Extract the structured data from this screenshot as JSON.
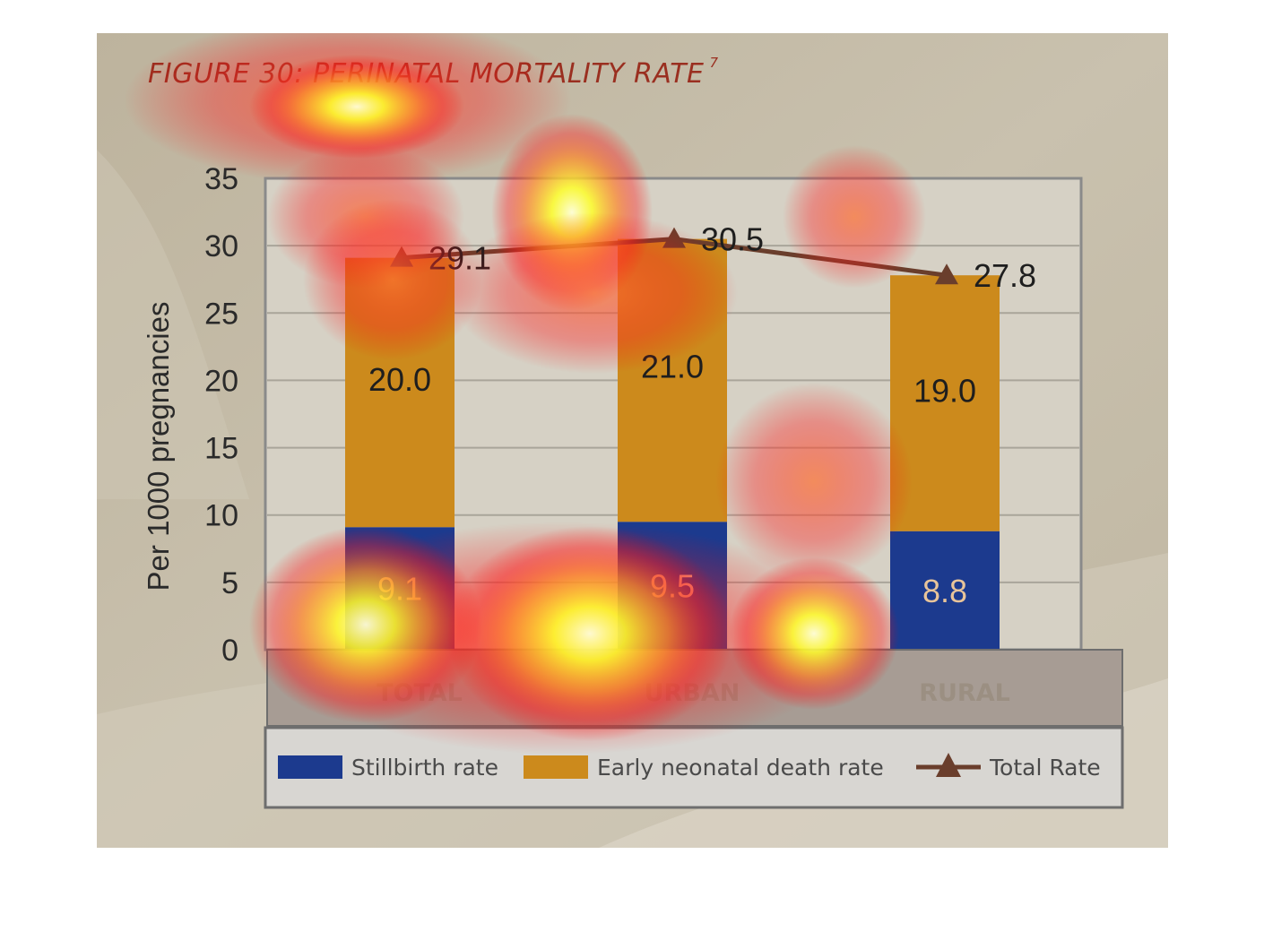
{
  "figure": {
    "title": "FIGURE 30: PERINATAL MORTALITY RATE",
    "title_superscript": "7"
  },
  "chart_data": {
    "type": "bar",
    "stacked": true,
    "categories": [
      "TOTAL",
      "URBAN",
      "RURAL"
    ],
    "series": [
      {
        "name": "Stillbirth rate",
        "type": "bar",
        "values": [
          9.1,
          9.5,
          8.8
        ],
        "color": "#1c3a8e"
      },
      {
        "name": "Early neonatal death rate",
        "type": "bar",
        "values": [
          20.0,
          21.0,
          19.0
        ],
        "color": "#cc8a1c"
      },
      {
        "name": "Total Rate",
        "type": "line",
        "marker": "triangle",
        "values": [
          29.1,
          30.5,
          27.8
        ],
        "color": "#6a3e2c"
      }
    ],
    "data_labels": {
      "stillbirth": [
        "9.1",
        "9.5",
        "8.8"
      ],
      "neonatal": [
        "20.0",
        "21.0",
        "19.0"
      ],
      "total": [
        "29.1",
        "30.5",
        "27.8"
      ]
    },
    "ylabel": "Per 1000 pregnancies",
    "xlabel": "",
    "ylim": [
      0,
      35
    ],
    "yticks": [
      "0",
      "5",
      "10",
      "15",
      "20",
      "25",
      "30",
      "35"
    ],
    "grid": true,
    "legend_position": "bottom",
    "overlay": "attention heatmap"
  }
}
